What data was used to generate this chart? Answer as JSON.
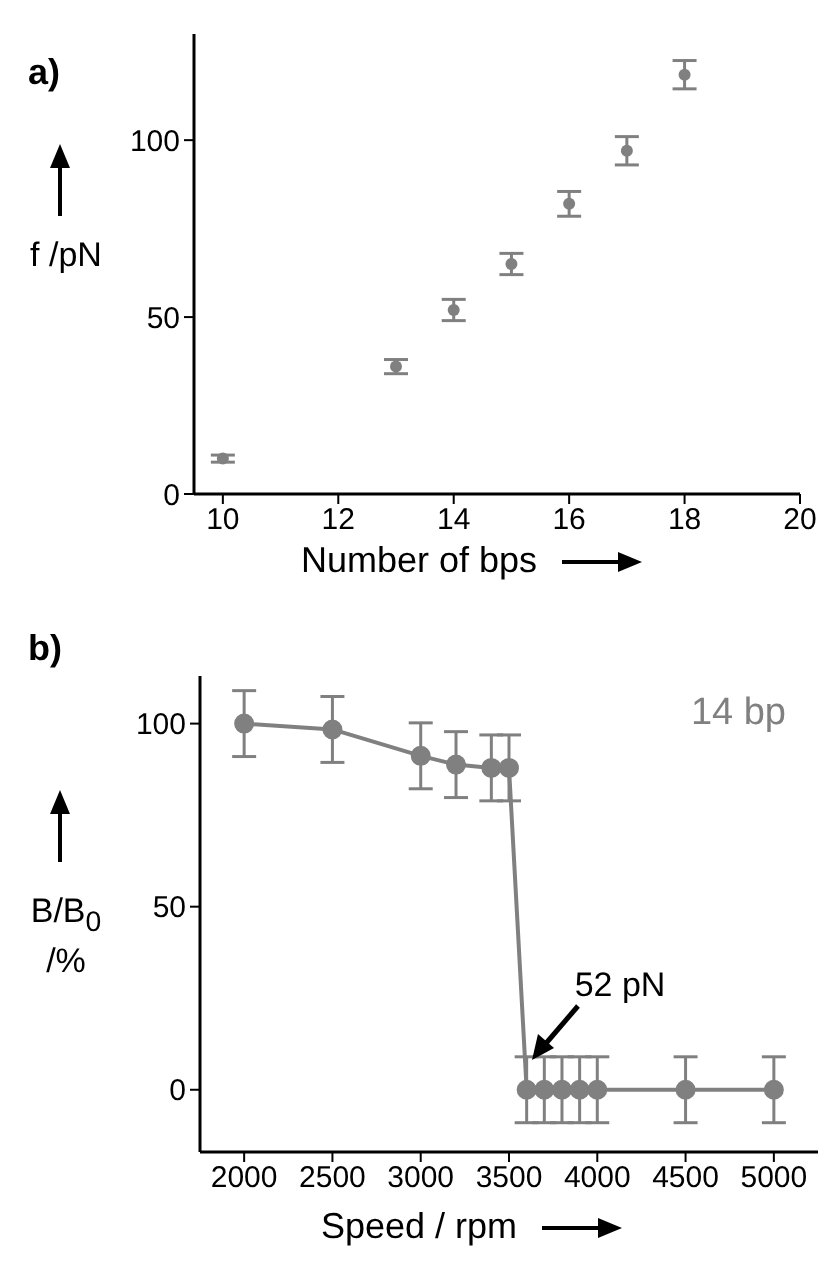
{
  "chart_data": [
    {
      "type": "scatter",
      "title": "a)",
      "xlabel": "Number of bps",
      "ylabel": "f /pN",
      "x": [
        10,
        13,
        14,
        15,
        16,
        17,
        18
      ],
      "values": [
        10,
        36,
        52,
        65,
        82,
        97,
        118.5
      ],
      "errors": [
        1,
        2,
        3,
        3,
        3.5,
        4,
        4
      ],
      "color": "#808080",
      "xlim": [
        9.5,
        20
      ],
      "ylim": [
        0,
        130
      ],
      "xticks": [
        10,
        12,
        14,
        16,
        18,
        20
      ],
      "yticks": [
        0,
        50,
        100
      ],
      "marker": "circle",
      "grid": false,
      "legend": false
    },
    {
      "type": "line",
      "title": "b)",
      "xlabel": "Speed / rpm",
      "ylabel": "B/B$_{0}$ /%",
      "x": [
        2000,
        2500,
        3000,
        3200,
        3400,
        3500,
        3600,
        3700,
        3800,
        3900,
        4000,
        4500,
        5000
      ],
      "values": [
        100,
        98.4,
        91.2,
        88.8,
        87.9,
        87.9,
        0,
        0,
        0,
        0,
        0,
        0,
        0
      ],
      "errors": [
        9,
        9,
        9,
        9,
        9,
        9,
        9,
        9,
        9,
        9,
        9,
        9,
        9
      ],
      "color": "#808080",
      "xlim": [
        1750,
        5250
      ],
      "ylim": [
        -17,
        113
      ],
      "xticks": [
        2000,
        2500,
        3000,
        3500,
        4000,
        4500,
        5000
      ],
      "yticks": [
        0,
        50,
        100
      ],
      "marker": "circle",
      "line_style": "solid",
      "grid": false,
      "legend": false,
      "annotations": [
        "14 bp",
        {
          "text": "52 pN",
          "x": 3600,
          "y": 0
        }
      ]
    }
  ]
}
